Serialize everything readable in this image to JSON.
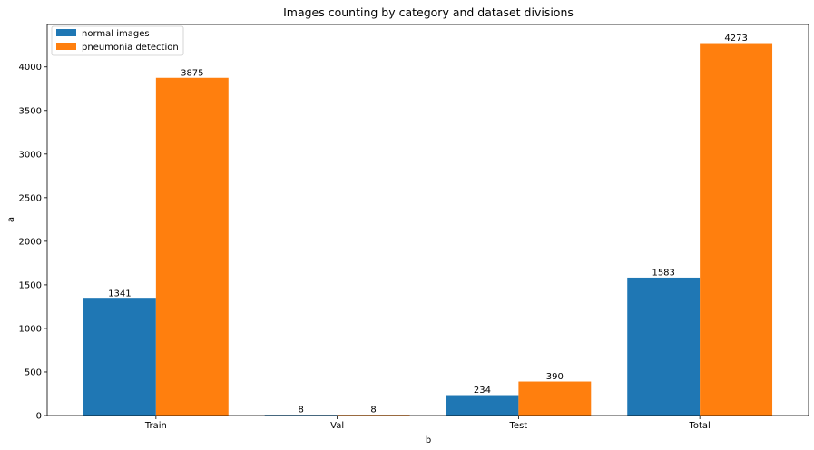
{
  "chart_data": {
    "type": "bar",
    "title": "Images counting by category and dataset divisions",
    "xlabel": "b",
    "ylabel": "a",
    "categories": [
      "Train",
      "Val",
      "Test",
      "Total"
    ],
    "series": [
      {
        "name": "normal images",
        "color": "#1f77b4",
        "values": [
          1341,
          8,
          234,
          1583
        ]
      },
      {
        "name": "pneumonia detection",
        "color": "#ff7f0e",
        "values": [
          3875,
          8,
          390,
          4273
        ]
      }
    ],
    "ylim": [
      0,
      4486.65
    ],
    "yticks": [
      0,
      500,
      1000,
      1500,
      2000,
      2500,
      3000,
      3500,
      4000
    ],
    "grid": false,
    "legend_position": "top-left",
    "data_labels": true
  }
}
